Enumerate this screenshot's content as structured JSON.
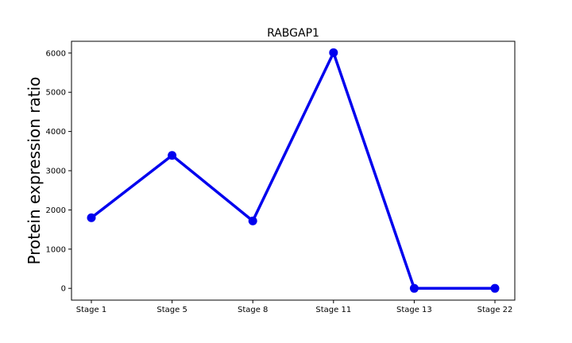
{
  "chart_data": {
    "type": "line",
    "title": "RABGAP1",
    "xlabel": "",
    "ylabel": "Protein expression ratio",
    "categories": [
      "Stage 1",
      "Stage 5",
      "Stage 8",
      "Stage 11",
      "Stage 13",
      "Stage 22"
    ],
    "series": [
      {
        "values": [
          1800,
          3390,
          1720,
          6010,
          0,
          0
        ],
        "color": "#0000ee"
      }
    ],
    "yticks": [
      0,
      1000,
      2000,
      3000,
      4000,
      5000,
      6000
    ],
    "ylim": [
      -300,
      6300
    ],
    "grid": false,
    "legend": "none"
  }
}
